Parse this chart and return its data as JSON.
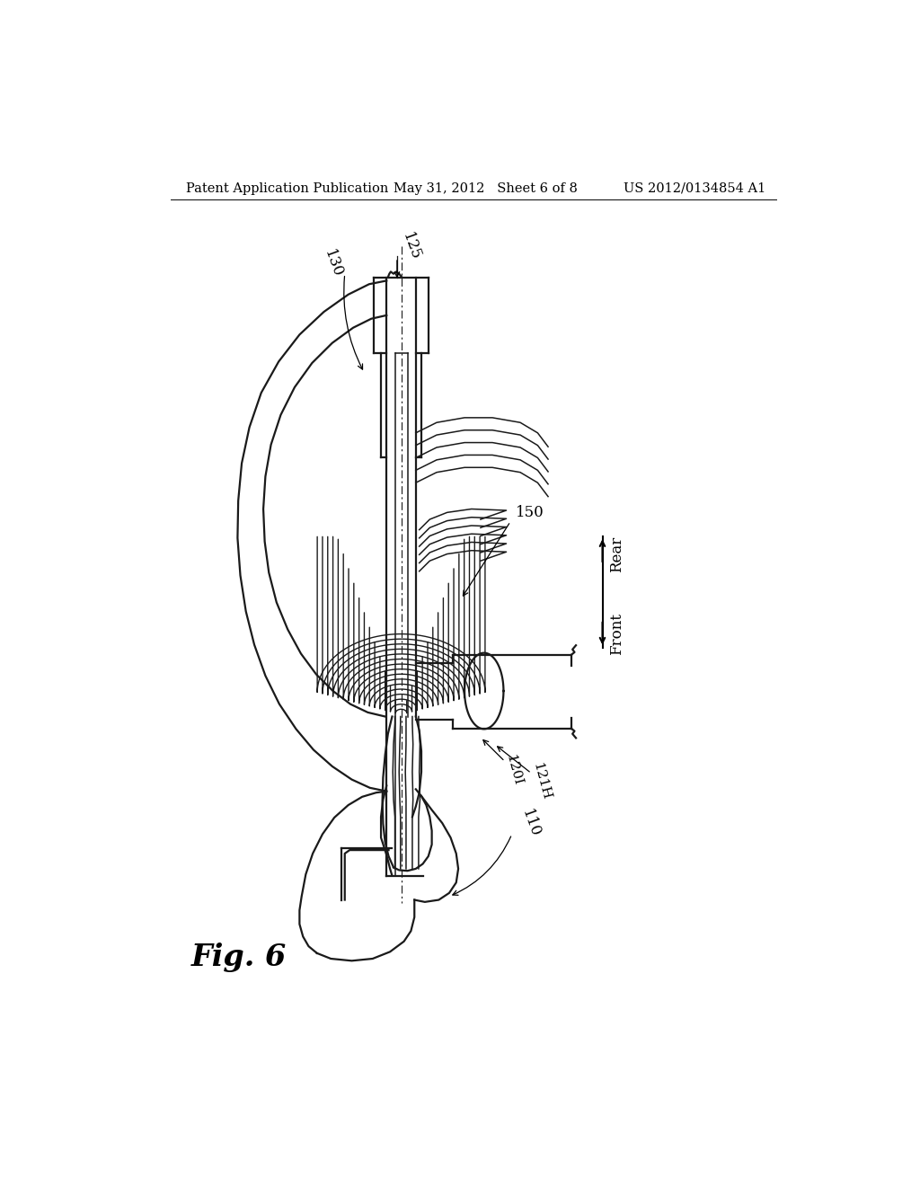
{
  "background_color": "#ffffff",
  "header_left": "Patent Application Publication",
  "header_center": "May 31, 2012   Sheet 6 of 8",
  "header_right": "US 2012/0134854 A1",
  "fig_label": "Fig. 6",
  "line_color": "#1a1a1a",
  "lw_main": 1.6,
  "lw_thin": 1.1,
  "lw_dash": 0.8
}
